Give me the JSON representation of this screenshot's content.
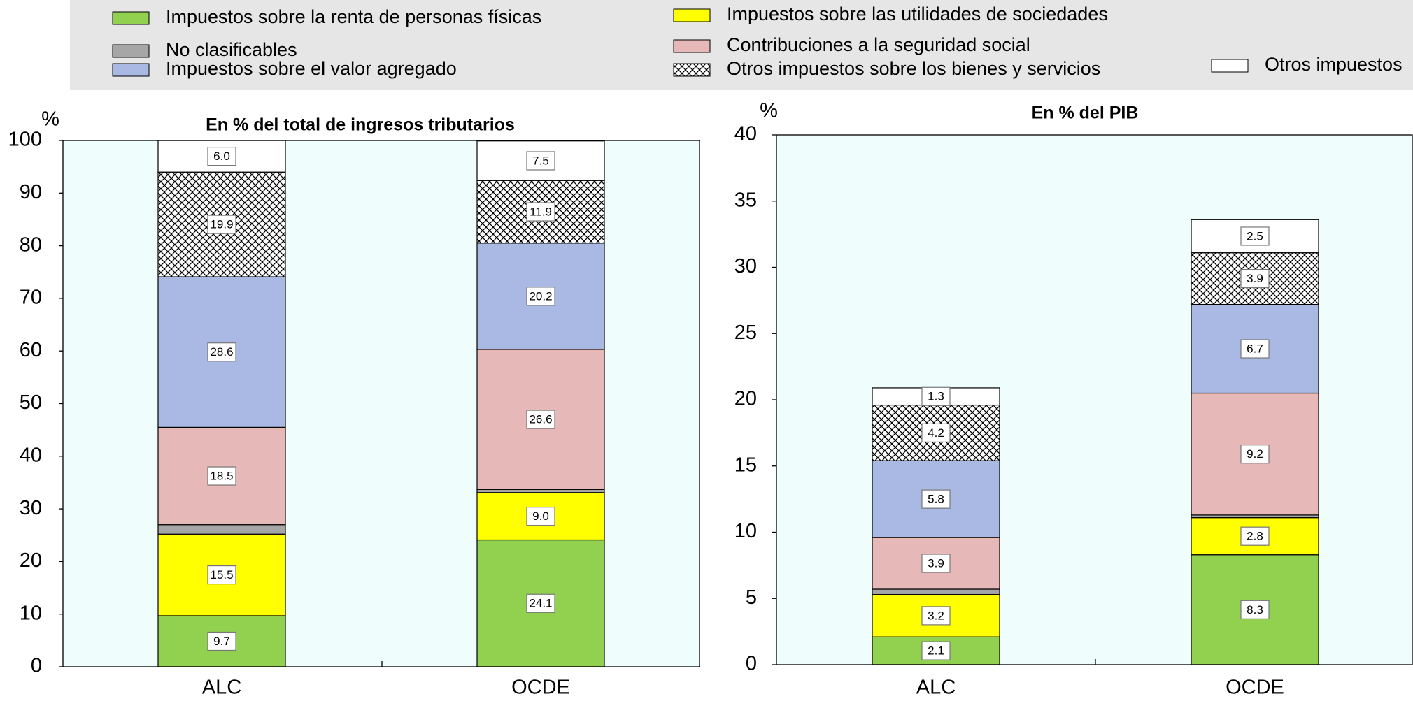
{
  "chart_data": [
    {
      "type": "stacked_bar",
      "title": "En % del total de ingresos tributarios",
      "y_label": "%",
      "categories": [
        "ALC",
        "OCDE"
      ],
      "ylim": [
        0,
        100
      ],
      "yticks": [
        0,
        10,
        20,
        30,
        40,
        50,
        60,
        70,
        80,
        90,
        100
      ],
      "series": [
        {
          "name": "Impuestos sobre la renta de personas físicas",
          "color": "#92d050",
          "values": [
            9.7,
            24.1
          ],
          "value_labels": [
            "9.7",
            "24.1"
          ]
        },
        {
          "name": "Impuestos sobre las utilidades de sociedades",
          "color": "#ffff00",
          "values": [
            15.5,
            9.0
          ],
          "value_labels": [
            "15.5",
            "9.0"
          ]
        },
        {
          "name": "No clasificables",
          "color": "#a6a6a6",
          "values": [
            1.8,
            0.6
          ],
          "value_labels": [
            null,
            null
          ]
        },
        {
          "name": "Contribuciones a la seguridad social",
          "color": "#e6b8b7",
          "values": [
            18.5,
            26.6
          ],
          "value_labels": [
            "18.5",
            "26.6"
          ]
        },
        {
          "name": "Impuestos sobre el valor agregado",
          "color": "#a9b9e3",
          "values": [
            28.6,
            20.2
          ],
          "value_labels": [
            "28.6",
            "20.2"
          ]
        },
        {
          "name": "Otros impuestos sobre los bienes y servicios",
          "color": "crosshatch",
          "values": [
            19.9,
            11.9
          ],
          "value_labels": [
            "19.9",
            "11.9"
          ]
        },
        {
          "name": "Otros impuestos",
          "color": "#ffffff",
          "values": [
            6.0,
            7.5
          ],
          "value_labels": [
            "6.0",
            "7.5"
          ]
        }
      ]
    },
    {
      "type": "stacked_bar",
      "title": "En % del PIB",
      "y_label": "%",
      "categories": [
        "ALC",
        "OCDE"
      ],
      "ylim": [
        0,
        40
      ],
      "yticks": [
        0,
        5,
        10,
        15,
        20,
        25,
        30,
        35,
        40
      ],
      "series": [
        {
          "color": "#92d050",
          "values": [
            2.1,
            8.3
          ],
          "value_labels": [
            "2.1",
            "8.3"
          ]
        },
        {
          "color": "#ffff00",
          "values": [
            3.2,
            2.8
          ],
          "value_labels": [
            "3.2",
            "2.8"
          ]
        },
        {
          "color": "#a6a6a6",
          "values": [
            0.4,
            0.2
          ],
          "value_labels": [
            null,
            null
          ]
        },
        {
          "color": "#e6b8b7",
          "values": [
            3.9,
            9.2
          ],
          "value_labels": [
            "3.9",
            "9.2"
          ]
        },
        {
          "color": "#a9b9e3",
          "values": [
            5.8,
            6.7
          ],
          "value_labels": [
            "5.8",
            "6.7"
          ]
        },
        {
          "color": "crosshatch",
          "values": [
            4.2,
            3.9
          ],
          "value_labels": [
            "4.2",
            "3.9"
          ]
        },
        {
          "color": "#ffffff",
          "values": [
            1.3,
            2.5
          ],
          "value_labels": [
            "1.3",
            "2.5"
          ]
        }
      ]
    }
  ]
}
